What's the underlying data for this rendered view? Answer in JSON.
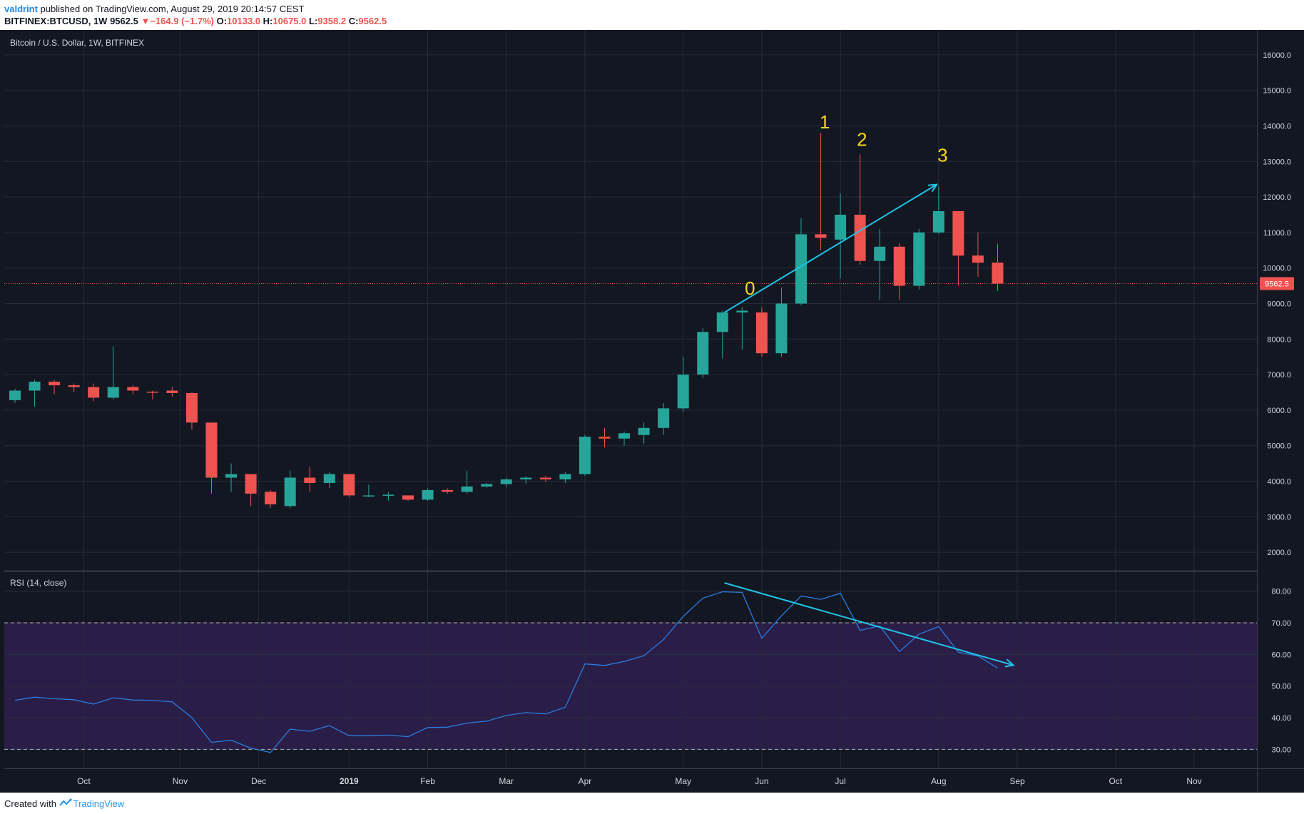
{
  "header": {
    "author": "valdrint",
    "published_text": "published on TradingView.com, August 29, 2019 20:14:57 CEST",
    "symbol_line": "BITFINEX:BTCUSD, 1W",
    "last_price": "9562.5",
    "change_arrow": "▼",
    "change_text": "−164.9 (−1.7%)",
    "ohlc": {
      "o_label": "O:",
      "o_value": "10133.0",
      "h_label": "H:",
      "h_value": "10675.0",
      "l_label": "L:",
      "l_value": "9358.2",
      "c_label": "C:",
      "c_value": "9562.5"
    }
  },
  "footer": {
    "created_with": "Created with",
    "brand": "TradingView"
  },
  "colors": {
    "background": "#131722",
    "up": "#26a69a",
    "down": "#ef5350",
    "rsi_line": "#2a7de1",
    "rsi_band": "#2a1d47",
    "annotation_arrow": "#1ec6e8",
    "wave_label": "#f9d71c"
  },
  "chart_data": [
    {
      "type": "candlestick",
      "title": "Bitcoin / U.S. Dollar, 1W, BITFINEX",
      "ylim": [
        1500,
        16700
      ],
      "y_ticks": [
        "2000.0",
        "3000.0",
        "4000.0",
        "5000.0",
        "6000.0",
        "7000.0",
        "8000.0",
        "9000.0",
        "10000.0",
        "11000.0",
        "12000.0",
        "13000.0",
        "14000.0",
        "15000.0",
        "16000.0"
      ],
      "x_ticks": [
        {
          "label": "Oct",
          "index": 3.5
        },
        {
          "label": "Nov",
          "index": 8.4
        },
        {
          "label": "Dec",
          "index": 12.4
        },
        {
          "label": "2019",
          "index": 17.0
        },
        {
          "label": "Feb",
          "index": 21.0
        },
        {
          "label": "Mar",
          "index": 25.0
        },
        {
          "label": "Apr",
          "index": 29.0
        },
        {
          "label": "May",
          "index": 34.0
        },
        {
          "label": "Jun",
          "index": 38.0
        },
        {
          "label": "Jul",
          "index": 42.0
        },
        {
          "label": "Aug",
          "index": 47.0
        },
        {
          "label": "Sep",
          "index": 51.0
        },
        {
          "label": "Oct",
          "index": 56.0
        },
        {
          "label": "Nov",
          "index": 60.0
        }
      ],
      "last_price_label": "9562.5",
      "last_price": 9562.5,
      "candles": [
        [
          6280,
          6600,
          6200,
          6550
        ],
        [
          6550,
          6850,
          6100,
          6800
        ],
        [
          6800,
          6850,
          6450,
          6700
        ],
        [
          6700,
          6750,
          6500,
          6650
        ],
        [
          6650,
          6750,
          6250,
          6350
        ],
        [
          6350,
          7800,
          6300,
          6650
        ],
        [
          6650,
          6700,
          6450,
          6550
        ],
        [
          6520,
          6550,
          6300,
          6500
        ],
        [
          6550,
          6650,
          6380,
          6480
        ],
        [
          6480,
          6500,
          5450,
          5650
        ],
        [
          5650,
          5650,
          3650,
          4100
        ],
        [
          4100,
          4500,
          3700,
          4200
        ],
        [
          4200,
          4200,
          3300,
          3650
        ],
        [
          3700,
          3750,
          3250,
          3350
        ],
        [
          3300,
          4300,
          3250,
          4100
        ],
        [
          4100,
          4400,
          3700,
          3950
        ],
        [
          3950,
          4250,
          3800,
          4200
        ],
        [
          4200,
          4200,
          3550,
          3600
        ],
        [
          3600,
          3900,
          3550,
          3600
        ],
        [
          3600,
          3700,
          3450,
          3620
        ],
        [
          3600,
          3600,
          3450,
          3480
        ],
        [
          3480,
          3800,
          3450,
          3750
        ],
        [
          3750,
          3800,
          3650,
          3700
        ],
        [
          3700,
          4300,
          3650,
          3850
        ],
        [
          3850,
          3950,
          3820,
          3920
        ],
        [
          3920,
          4100,
          3830,
          4050
        ],
        [
          4050,
          4150,
          3930,
          4100
        ],
        [
          4100,
          4150,
          3980,
          4050
        ],
        [
          4050,
          4250,
          3950,
          4200
        ],
        [
          4200,
          5300,
          4150,
          5250
        ],
        [
          5250,
          5500,
          4950,
          5200
        ],
        [
          5200,
          5400,
          5000,
          5350
        ],
        [
          5300,
          5650,
          5050,
          5500
        ],
        [
          5500,
          6200,
          5300,
          6050
        ],
        [
          6050,
          7500,
          5950,
          7000
        ],
        [
          7000,
          8300,
          6900,
          8200
        ],
        [
          8200,
          8800,
          7450,
          8750
        ],
        [
          8750,
          8900,
          7700,
          8800
        ],
        [
          8750,
          8900,
          7500,
          7600
        ],
        [
          7600,
          9450,
          7500,
          9000
        ],
        [
          9000,
          11400,
          8950,
          10950
        ],
        [
          10950,
          13800,
          10500,
          10850
        ],
        [
          10800,
          12100,
          9700,
          11500
        ],
        [
          11500,
          13200,
          10100,
          10200
        ],
        [
          10200,
          11100,
          9100,
          10600
        ],
        [
          10600,
          10700,
          9100,
          9500
        ],
        [
          9500,
          11100,
          9400,
          11000
        ],
        [
          11000,
          12300,
          10950,
          11600
        ],
        [
          11600,
          11600,
          9500,
          10350
        ],
        [
          10350,
          11000,
          9750,
          10150
        ],
        [
          10150,
          10680,
          9350,
          9560
        ]
      ],
      "wave_labels": [
        {
          "text": "1",
          "index": 41.2,
          "y": 13930
        },
        {
          "text": "2",
          "index": 43.1,
          "y": 13440
        },
        {
          "text": "3",
          "index": 47.2,
          "y": 13000
        },
        {
          "text": "0",
          "index": 37.4,
          "y": 9250
        }
      ],
      "trend_arrow": {
        "from": {
          "index": 36.1,
          "y": 8750
        },
        "to": {
          "index": 46.9,
          "y": 12350
        }
      }
    },
    {
      "type": "line",
      "title": "RSI (14, close)",
      "ylim": [
        24,
        86
      ],
      "y_ticks": [
        "30.00",
        "40.00",
        "50.00",
        "60.00",
        "70.00",
        "80.00"
      ],
      "band": [
        30,
        70
      ],
      "values": [
        45.5,
        46.5,
        46,
        45.7,
        44.3,
        46.3,
        45.6,
        45.5,
        45,
        40,
        32.2,
        32.9,
        30.4,
        29,
        36.4,
        35.7,
        37.5,
        34.3,
        34.3,
        34.5,
        34,
        36.9,
        37,
        38.3,
        38.9,
        40.7,
        41.6,
        41.2,
        43.3,
        57,
        56.5,
        57.8,
        59.6,
        64.7,
        72,
        77.8,
        79.8,
        79.6,
        65.1,
        72.2,
        78.5,
        77.4,
        79.3,
        67.6,
        69,
        60.9,
        66.4,
        68.8,
        60.7,
        59.5,
        55.7
      ],
      "trend_arrow": {
        "from": {
          "index": 36.1,
          "y": 82.6
        },
        "to": {
          "index": 50.8,
          "y": 56.6
        }
      }
    }
  ]
}
